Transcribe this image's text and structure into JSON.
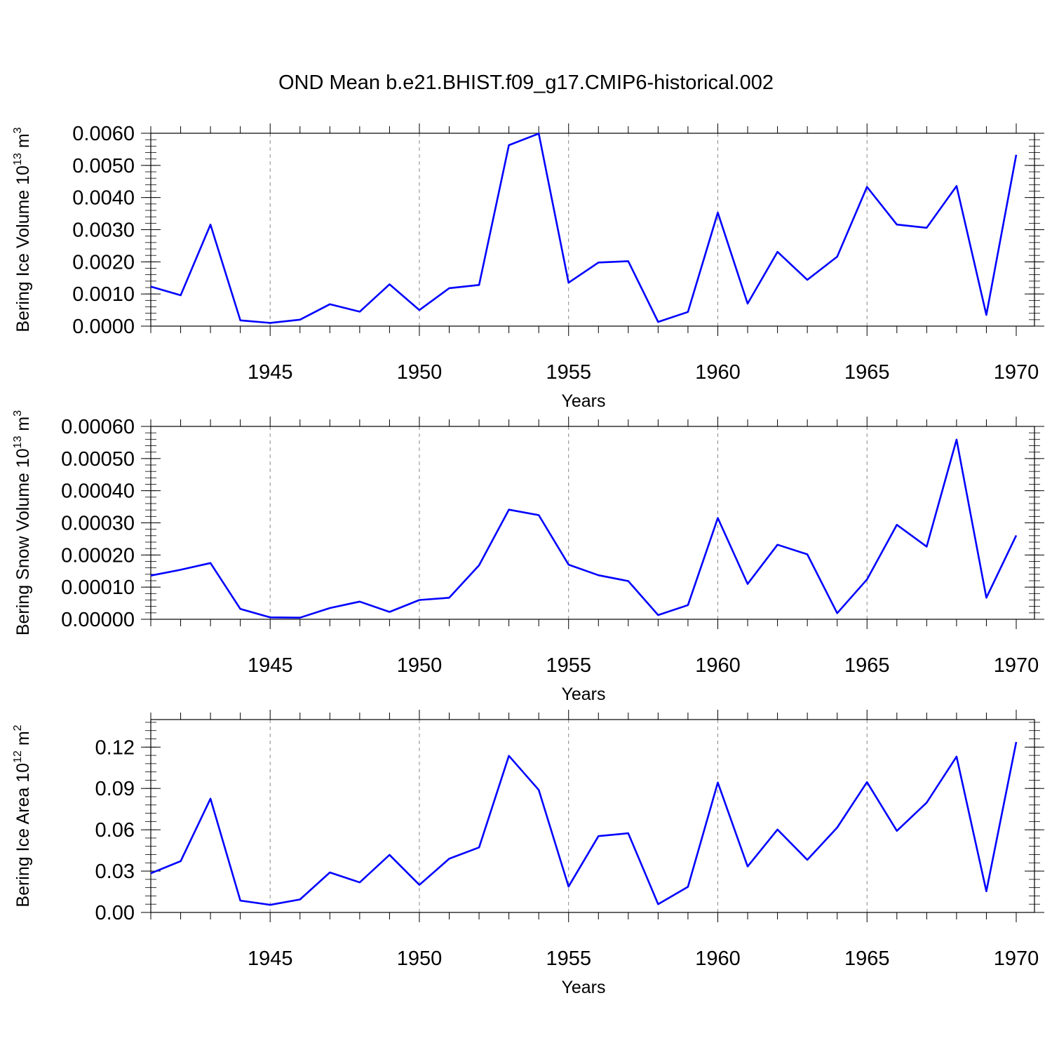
{
  "figure": {
    "title": "OND Mean b.e21.BHIST.f09_g17.CMIP6-historical.002"
  },
  "chart_data": [
    {
      "type": "line",
      "title": "",
      "xlabel": "Years",
      "ylabel": {
        "text": "Bering Ice Volume 10",
        "sup": "13",
        "unit": " m",
        "unit_sup": "3"
      },
      "xlim": [
        1941,
        1970
      ],
      "ylim": [
        0,
        0.006
      ],
      "xticks": [
        1945,
        1950,
        1955,
        1960,
        1965,
        1970
      ],
      "yticks": [
        0,
        0.001,
        0.002,
        0.003,
        0.004,
        0.005,
        0.006
      ],
      "ytick_labels": [
        "0.0000",
        "0.0010",
        "0.0020",
        "0.0030",
        "0.0040",
        "0.0050",
        "0.0060"
      ],
      "grid": "vertical dashed at major x ticks",
      "line_color": "#0000ff",
      "x": [
        1941,
        1942,
        1943,
        1944,
        1945,
        1946,
        1947,
        1948,
        1949,
        1950,
        1951,
        1952,
        1953,
        1954,
        1955,
        1956,
        1957,
        1958,
        1959,
        1960,
        1961,
        1962,
        1963,
        1964,
        1965,
        1966,
        1967,
        1968,
        1969,
        1970
      ],
      "values": [
        0.00123,
        0.00096,
        0.00316,
        0.00018,
        0.0001,
        0.0002,
        0.00068,
        0.00045,
        0.0013,
        0.0005,
        0.00118,
        0.00128,
        0.00563,
        0.00599,
        0.00135,
        0.00198,
        0.00202,
        0.00013,
        0.00044,
        0.00353,
        0.0007,
        0.00231,
        0.00144,
        0.00216,
        0.00433,
        0.00316,
        0.00306,
        0.00436,
        0.00035,
        0.00533
      ]
    },
    {
      "type": "line",
      "title": "",
      "xlabel": "Years",
      "ylabel": {
        "text": "Bering Snow Volume 10",
        "sup": "13",
        "unit": " m",
        "unit_sup": "3"
      },
      "xlim": [
        1941,
        1970
      ],
      "ylim": [
        0,
        0.0006
      ],
      "xticks": [
        1945,
        1950,
        1955,
        1960,
        1965,
        1970
      ],
      "yticks": [
        0,
        0.0001,
        0.0002,
        0.0003,
        0.0004,
        0.0005,
        0.0006
      ],
      "ytick_labels": [
        "0.00000",
        "0.00010",
        "0.00020",
        "0.00030",
        "0.00040",
        "0.00050",
        "0.00060"
      ],
      "grid": "vertical dashed at major x ticks",
      "line_color": "#0000ff",
      "x": [
        1941,
        1942,
        1943,
        1944,
        1945,
        1946,
        1947,
        1948,
        1949,
        1950,
        1951,
        1952,
        1953,
        1954,
        1955,
        1956,
        1957,
        1958,
        1959,
        1960,
        1961,
        1962,
        1963,
        1964,
        1965,
        1966,
        1967,
        1968,
        1969,
        1970
      ],
      "values": [
        0.000136,
        0.000154,
        0.000175,
        3.2e-05,
        6e-06,
        5e-06,
        3.5e-05,
        5.5e-05,
        2.3e-05,
        6e-05,
        6.7e-05,
        0.000168,
        0.000341,
        0.000324,
        0.00017,
        0.000137,
        0.000119,
        1.3e-05,
        4.4e-05,
        0.000315,
        0.00011,
        0.000232,
        0.000202,
        1.9e-05,
        0.000124,
        0.000294,
        0.000226,
        0.000559,
        6.7e-05,
        0.000261
      ]
    },
    {
      "type": "line",
      "title": "",
      "xlabel": "Years",
      "ylabel": {
        "text": "Bering Ice Area 10",
        "sup": "12",
        "unit": " m",
        "unit_sup": "2"
      },
      "xlim": [
        1941,
        1970
      ],
      "ylim": [
        0,
        0.14
      ],
      "xticks": [
        1945,
        1950,
        1955,
        1960,
        1965,
        1970
      ],
      "yticks": [
        0,
        0.03,
        0.06,
        0.09,
        0.12
      ],
      "ytick_labels": [
        "0.00",
        "0.03",
        "0.06",
        "0.09",
        "0.12"
      ],
      "grid": "vertical dashed at major x ticks",
      "line_color": "#0000ff",
      "x": [
        1941,
        1942,
        1943,
        1944,
        1945,
        1946,
        1947,
        1948,
        1949,
        1950,
        1951,
        1952,
        1953,
        1954,
        1955,
        1956,
        1957,
        1958,
        1959,
        1960,
        1961,
        1962,
        1963,
        1964,
        1965,
        1966,
        1967,
        1968,
        1969,
        1970
      ],
      "values": [
        0.0284,
        0.0372,
        0.0826,
        0.0086,
        0.0055,
        0.0094,
        0.029,
        0.0218,
        0.0418,
        0.02,
        0.039,
        0.0472,
        0.1137,
        0.0889,
        0.0188,
        0.0554,
        0.0575,
        0.006,
        0.0186,
        0.0943,
        0.0334,
        0.0602,
        0.0382,
        0.0616,
        0.0946,
        0.0592,
        0.0797,
        0.1131,
        0.0154,
        0.1237
      ]
    }
  ]
}
